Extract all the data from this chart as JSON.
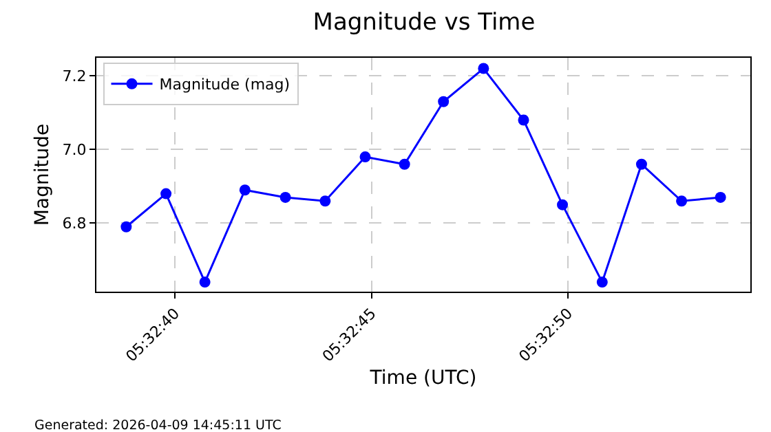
{
  "chart_data": {
    "type": "line",
    "title": "Magnitude vs Time",
    "xlabel": "Time (UTC)",
    "ylabel": "Magnitude",
    "x": [
      5.5441,
      5.544381,
      5.544656,
      5.544939,
      5.545225,
      5.545506,
      5.545789,
      5.546067,
      5.546342,
      5.546625,
      5.546908,
      5.547183,
      5.547464,
      5.547742,
      5.548025,
      5.5483
    ],
    "series": [
      {
        "name": "Magnitude (mag)",
        "color": "#0000ff",
        "values": [
          6.79,
          6.88,
          6.64,
          6.89,
          6.87,
          6.86,
          6.98,
          6.96,
          7.13,
          7.22,
          7.08,
          6.85,
          6.64,
          6.96,
          6.86,
          6.87
        ]
      }
    ],
    "xlim": [
      5.543889,
      5.548511
    ],
    "xticks": [
      {
        "value": 5.544444,
        "label": "05:32:40"
      },
      {
        "value": 5.545833,
        "label": "05:32:45"
      },
      {
        "value": 5.547222,
        "label": "05:32:50"
      }
    ],
    "ylim": [
      6.614,
      7.249
    ],
    "yticks": [
      {
        "value": 6.8,
        "label": "6.8"
      },
      {
        "value": 7.0,
        "label": "7.0"
      },
      {
        "value": 7.2,
        "label": "7.2"
      }
    ],
    "grid": true,
    "legend": "top left",
    "marker": "circle",
    "line_style": "solid",
    "annotations": [
      "Generated: 2026-04-09 14:45:11 UTC"
    ]
  }
}
